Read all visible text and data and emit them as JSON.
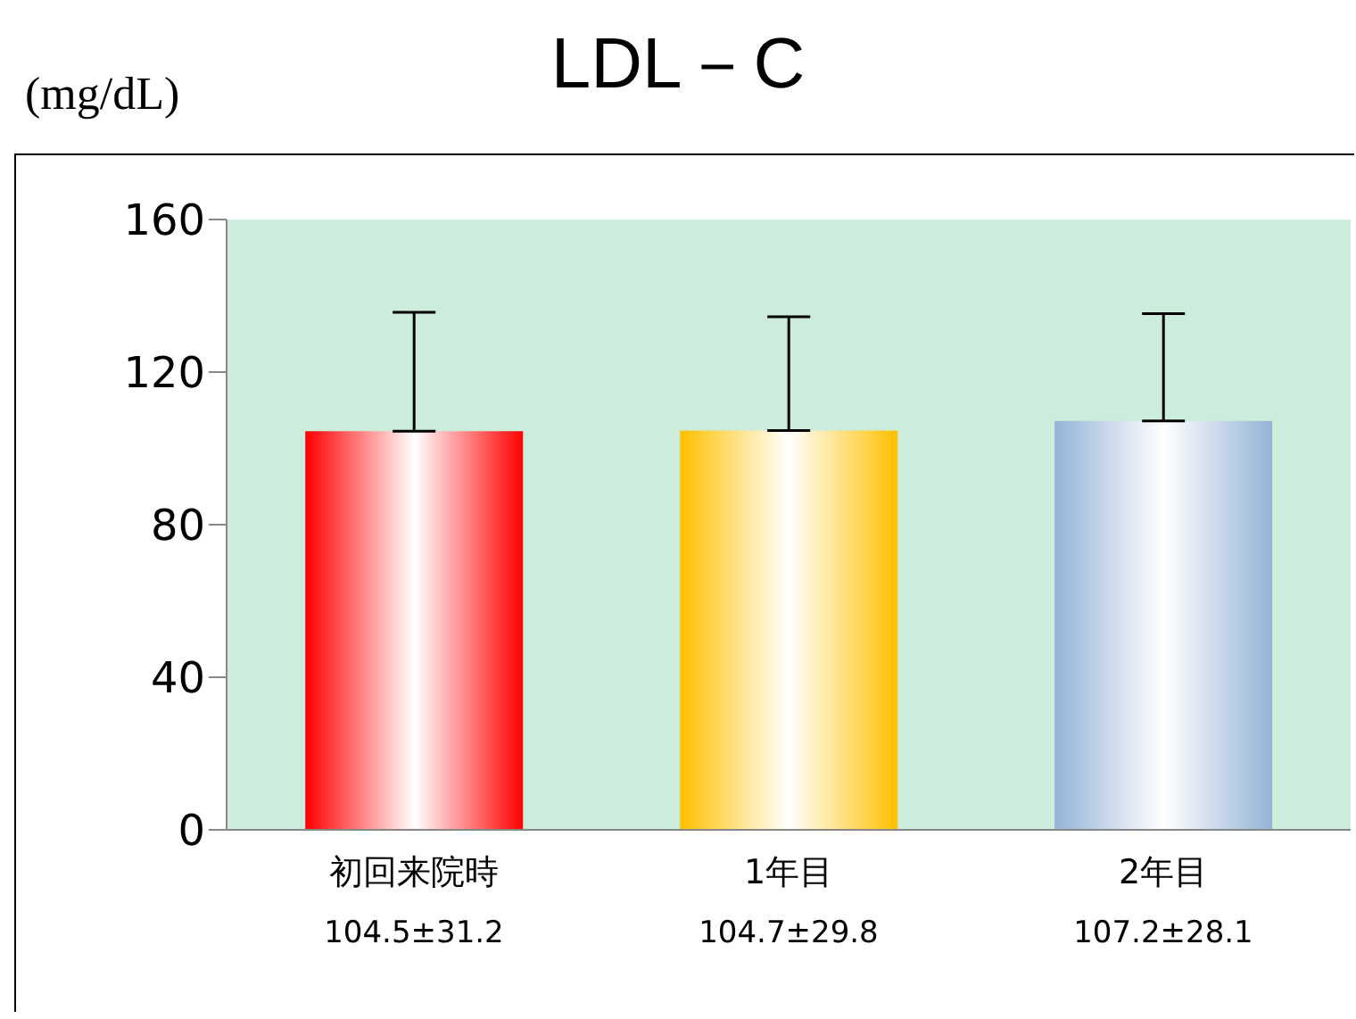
{
  "chart_data": {
    "type": "bar",
    "title": "LDL－C",
    "ylabel": "(mg/dL)",
    "categories": [
      "初回来院時",
      "1年目",
      "2年目"
    ],
    "values": [
      104.5,
      104.7,
      107.2
    ],
    "colors": [
      "#ff0000",
      "#ffc000",
      "#95b3d7"
    ],
    "errors": [
      [
        104.5,
        135.7
      ],
      [
        104.7,
        134.5
      ],
      [
        107.2,
        135.3
      ]
    ],
    "value_labels": [
      "104.5±31.2",
      "104.7±29.8",
      "107.2±28.1"
    ],
    "ylim": [
      0,
      160
    ],
    "yticks": [
      0,
      40,
      80,
      120,
      160
    ],
    "grid": false,
    "legend": false
  }
}
